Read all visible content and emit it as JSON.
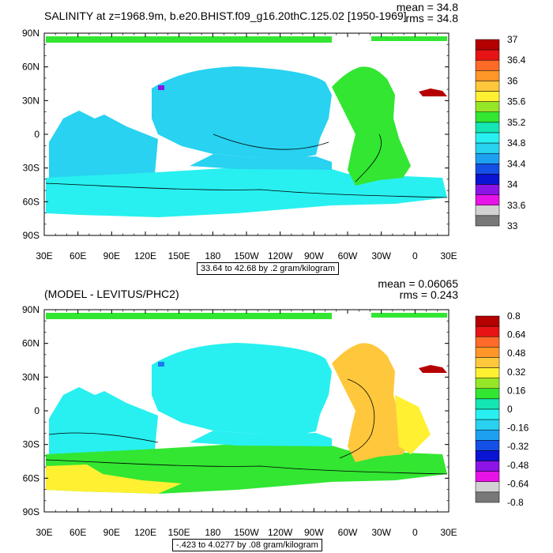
{
  "panels": [
    {
      "title": "SALINITY at z=1968.9m, b.e20.BHIST.f09_g16.20thC.125.02 [1950-1969]",
      "stats": [
        "mean = 34.8",
        "rms = 34.8"
      ],
      "info": "33.64 to 42.68 by .2 gram/kilogram",
      "y_ticks": [
        "90N",
        "60N",
        "30N",
        "0",
        "30S",
        "60S",
        "90S"
      ],
      "x_ticks": [
        "30E",
        "60E",
        "90E",
        "120E",
        "150E",
        "180",
        "150W",
        "120W",
        "90W",
        "60W",
        "30W",
        "0",
        "30E"
      ],
      "colorbar": {
        "labels": [
          "37",
          "36.4",
          "36",
          "35.6",
          "35.2",
          "34.8",
          "34.4",
          "34",
          "33.6",
          "33"
        ],
        "colors": [
          "#b40000",
          "#e61414",
          "#ff6a28",
          "#ff9628",
          "#ffc83c",
          "#fff032",
          "#96e628",
          "#32e632",
          "#14e6b4",
          "#28f0f0",
          "#28d2f0",
          "#1ea0f0",
          "#1450e6",
          "#0a14d2",
          "#8c14e6",
          "#e614e6",
          "#d2d2d2",
          "#787878"
        ]
      },
      "field_colors": {
        "main": "#28d2f0",
        "south": "#28f0f0",
        "atlantic": "#32e632",
        "hot": "#b40000",
        "purple": "#8c14e6",
        "north": "#32e632"
      }
    },
    {
      "title": "(MODEL - LEVITUS/PHC2)",
      "stats": [
        "mean = 0.06065",
        "rms = 0.243"
      ],
      "info": "-.423 to 4.0277 by .08 gram/kilogram",
      "y_ticks": [
        "90N",
        "60N",
        "30N",
        "0",
        "30S",
        "60S",
        "90S"
      ],
      "x_ticks": [
        "30E",
        "60E",
        "90E",
        "120E",
        "150E",
        "180",
        "150W",
        "120W",
        "90W",
        "60W",
        "30W",
        "0",
        "30E"
      ],
      "colorbar": {
        "labels": [
          "0.8",
          "0.64",
          "0.48",
          "0.32",
          "0.16",
          "0",
          "-0.16",
          "-0.32",
          "-0.48",
          "-0.64",
          "-0.8"
        ],
        "colors": [
          "#b40000",
          "#e61414",
          "#ff6a28",
          "#ff9628",
          "#ffc83c",
          "#fff032",
          "#96e628",
          "#32e632",
          "#14e6b4",
          "#28f0f0",
          "#28d2f0",
          "#1ea0f0",
          "#1450e6",
          "#0a14d2",
          "#8c14e6",
          "#e614e6",
          "#d2d2d2",
          "#787878"
        ]
      },
      "field_colors": {
        "main": "#28f0f0",
        "south": "#32e632",
        "atlantic": "#ffc83c",
        "hot": "#b40000",
        "purple": "#1e78f0",
        "north": "#32e632"
      }
    }
  ]
}
